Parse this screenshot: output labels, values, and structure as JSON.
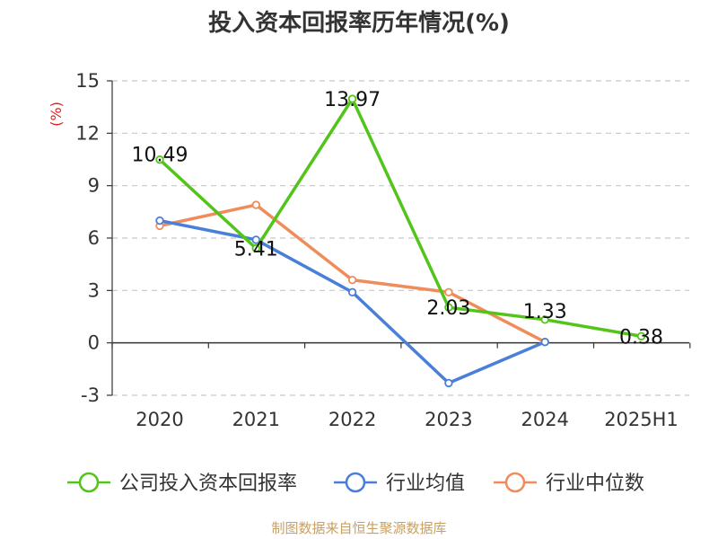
{
  "chart_data": {
    "type": "line",
    "title": "投入资本回报率历年情况(%)",
    "unit_label": "(%)",
    "categories": [
      "2020",
      "2021",
      "2022",
      "2023",
      "2024",
      "2025H1"
    ],
    "ylim": [
      -3,
      15
    ],
    "yticks": [
      "15",
      "12",
      "9",
      "6",
      "3",
      "0",
      "-3"
    ],
    "grid": true,
    "legend_position": "bottom",
    "series": [
      {
        "name": "公司投入资本回报率",
        "color": "#52c41a",
        "values": [
          10.49,
          5.41,
          13.97,
          2.03,
          1.33,
          0.38
        ],
        "labels": [
          "10.49",
          "5.41",
          "13.97",
          "2.03",
          "1.33",
          "0.38"
        ]
      },
      {
        "name": "行业均值",
        "color": "#4a7fd9",
        "values": [
          7.0,
          5.9,
          2.9,
          -2.3,
          0.05,
          null
        ]
      },
      {
        "name": "行业中位数",
        "color": "#f08c5a",
        "values": [
          6.7,
          7.9,
          3.6,
          2.9,
          0.05,
          null
        ]
      }
    ]
  },
  "source": "制图数据来自恒生聚源数据库"
}
